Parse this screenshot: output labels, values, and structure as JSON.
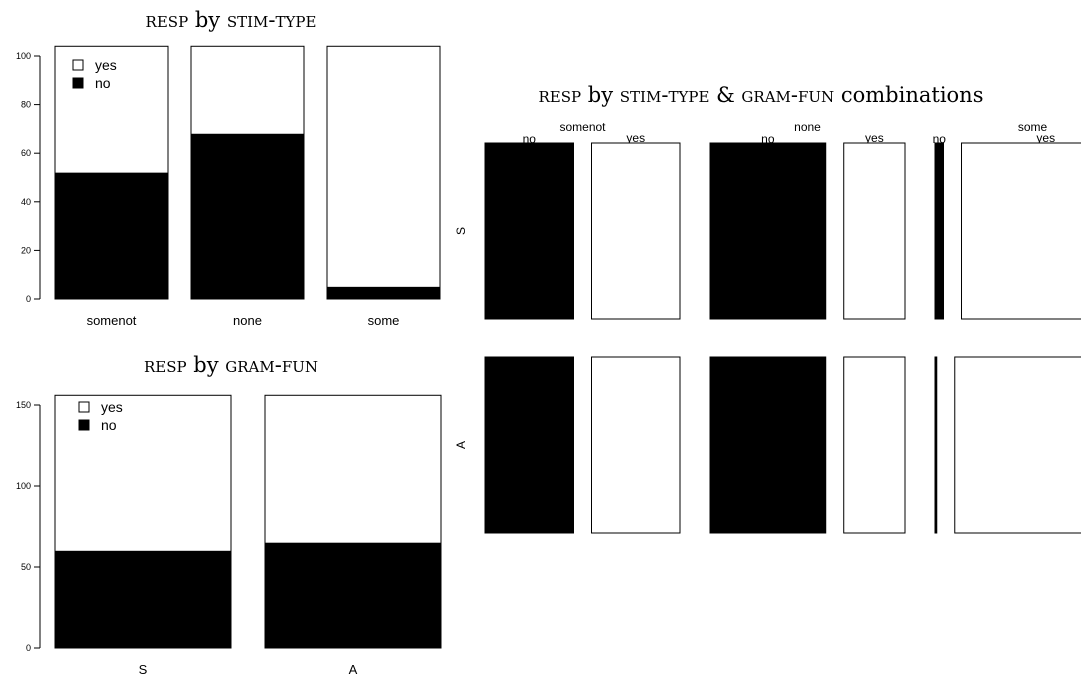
{
  "colors": {
    "no": "#000000",
    "yes": "#ffffff",
    "outline": "#000000"
  },
  "chart_data": [
    {
      "type": "bar",
      "stacked": true,
      "title": {
        "main": "resp",
        "joiner": "by",
        "var": "stim-type",
        "suffix": ""
      },
      "categories": [
        "somenot",
        "none",
        "some"
      ],
      "ylim": [
        0,
        100
      ],
      "yticks": [
        0,
        20,
        40,
        60,
        80,
        100
      ],
      "bar_top": 104,
      "series": [
        {
          "name": "no",
          "values": [
            52,
            68,
            5
          ]
        },
        {
          "name": "yes",
          "values": [
            52,
            36,
            99
          ]
        }
      ],
      "legend": [
        "yes",
        "no"
      ],
      "legend_position": "top-left"
    },
    {
      "type": "bar",
      "stacked": true,
      "title": {
        "main": "resp",
        "joiner": "by",
        "var": "gram-fun",
        "suffix": ""
      },
      "categories": [
        "S",
        "A"
      ],
      "ylim": [
        0,
        150
      ],
      "yticks": [
        0,
        50,
        100,
        150
      ],
      "bar_top": 156,
      "series": [
        {
          "name": "no",
          "values": [
            60,
            65
          ]
        },
        {
          "name": "yes",
          "values": [
            96,
            91
          ]
        }
      ],
      "legend": [
        "yes",
        "no"
      ],
      "legend_position": "top-left"
    },
    {
      "type": "mosaic",
      "title": {
        "main": "resp",
        "joiner": "by",
        "var": "stim-type & gram-fun",
        "suffix": " combinations"
      },
      "columns": [
        "somenot",
        "none",
        "some"
      ],
      "rows": [
        "S",
        "A"
      ],
      "levels": [
        "no",
        "yes"
      ],
      "values": {
        "S": {
          "somenot": [
            52,
            52
          ],
          "none": [
            68,
            36
          ],
          "some": [
            5,
            99
          ]
        },
        "A": {
          "somenot": [
            52,
            52
          ],
          "none": [
            68,
            36
          ],
          "some": [
            1,
            99
          ]
        }
      }
    }
  ]
}
